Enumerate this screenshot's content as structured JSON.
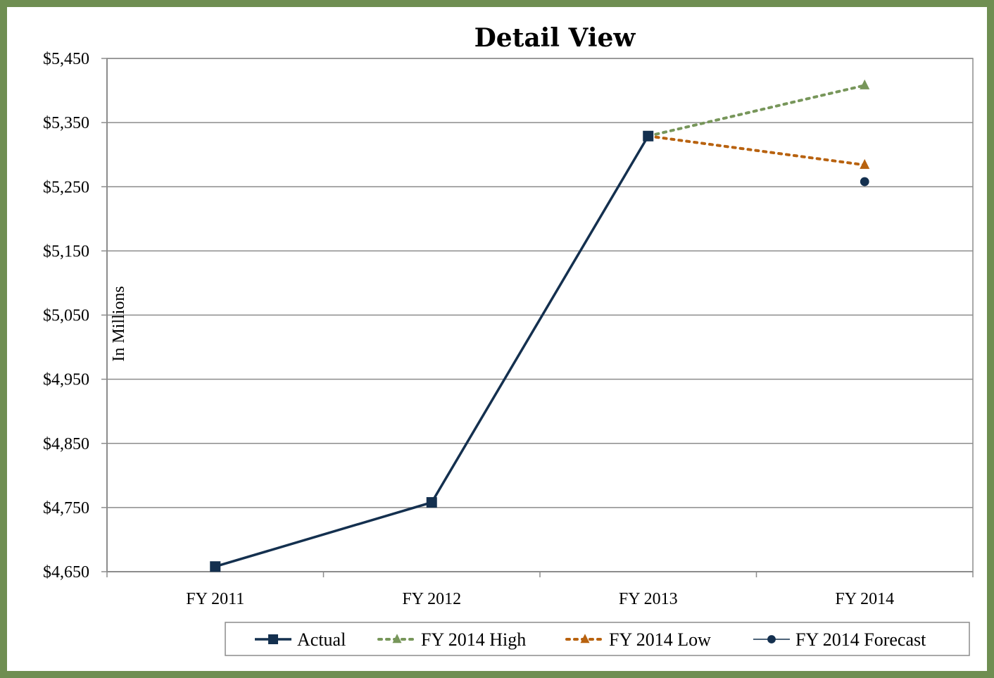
{
  "chart_data": {
    "type": "line",
    "title": "Detail View",
    "ylabel": "In Millions",
    "xlabel": "",
    "categories": [
      "FY 2011",
      "FY 2012",
      "FY 2013",
      "FY 2014"
    ],
    "ylim": [
      4650,
      5450
    ],
    "yticks": [
      4650,
      4750,
      4850,
      4950,
      5050,
      5150,
      5250,
      5350,
      5450
    ],
    "ytick_labels": [
      "$4,650",
      "$4,750",
      "$4,850",
      "$4,950",
      "$5,050",
      "$5,150",
      "$5,250",
      "$5,350",
      "$5,450"
    ],
    "grid": "horizontal",
    "legend_position": "bottom",
    "series": [
      {
        "name": "Actual",
        "color": "#14304f",
        "line": "solid",
        "marker": "square",
        "x": [
          "FY 2011",
          "FY 2012",
          "FY 2013"
        ],
        "values": [
          4658,
          4758,
          5329
        ]
      },
      {
        "name": "FY 2014 High",
        "color": "#77965a",
        "line": "dotted",
        "marker": "triangle",
        "x": [
          "FY 2013",
          "FY 2014"
        ],
        "values": [
          5329,
          5408
        ]
      },
      {
        "name": "FY 2014 Low",
        "color": "#b8620f",
        "line": "dotted",
        "marker": "triangle",
        "x": [
          "FY 2013",
          "FY 2014"
        ],
        "values": [
          5329,
          5284
        ]
      },
      {
        "name": "FY 2014 Forecast",
        "color": "#14304f",
        "line": "solid",
        "marker": "circle",
        "x": [
          "FY 2014"
        ],
        "values": [
          5258
        ]
      }
    ]
  }
}
